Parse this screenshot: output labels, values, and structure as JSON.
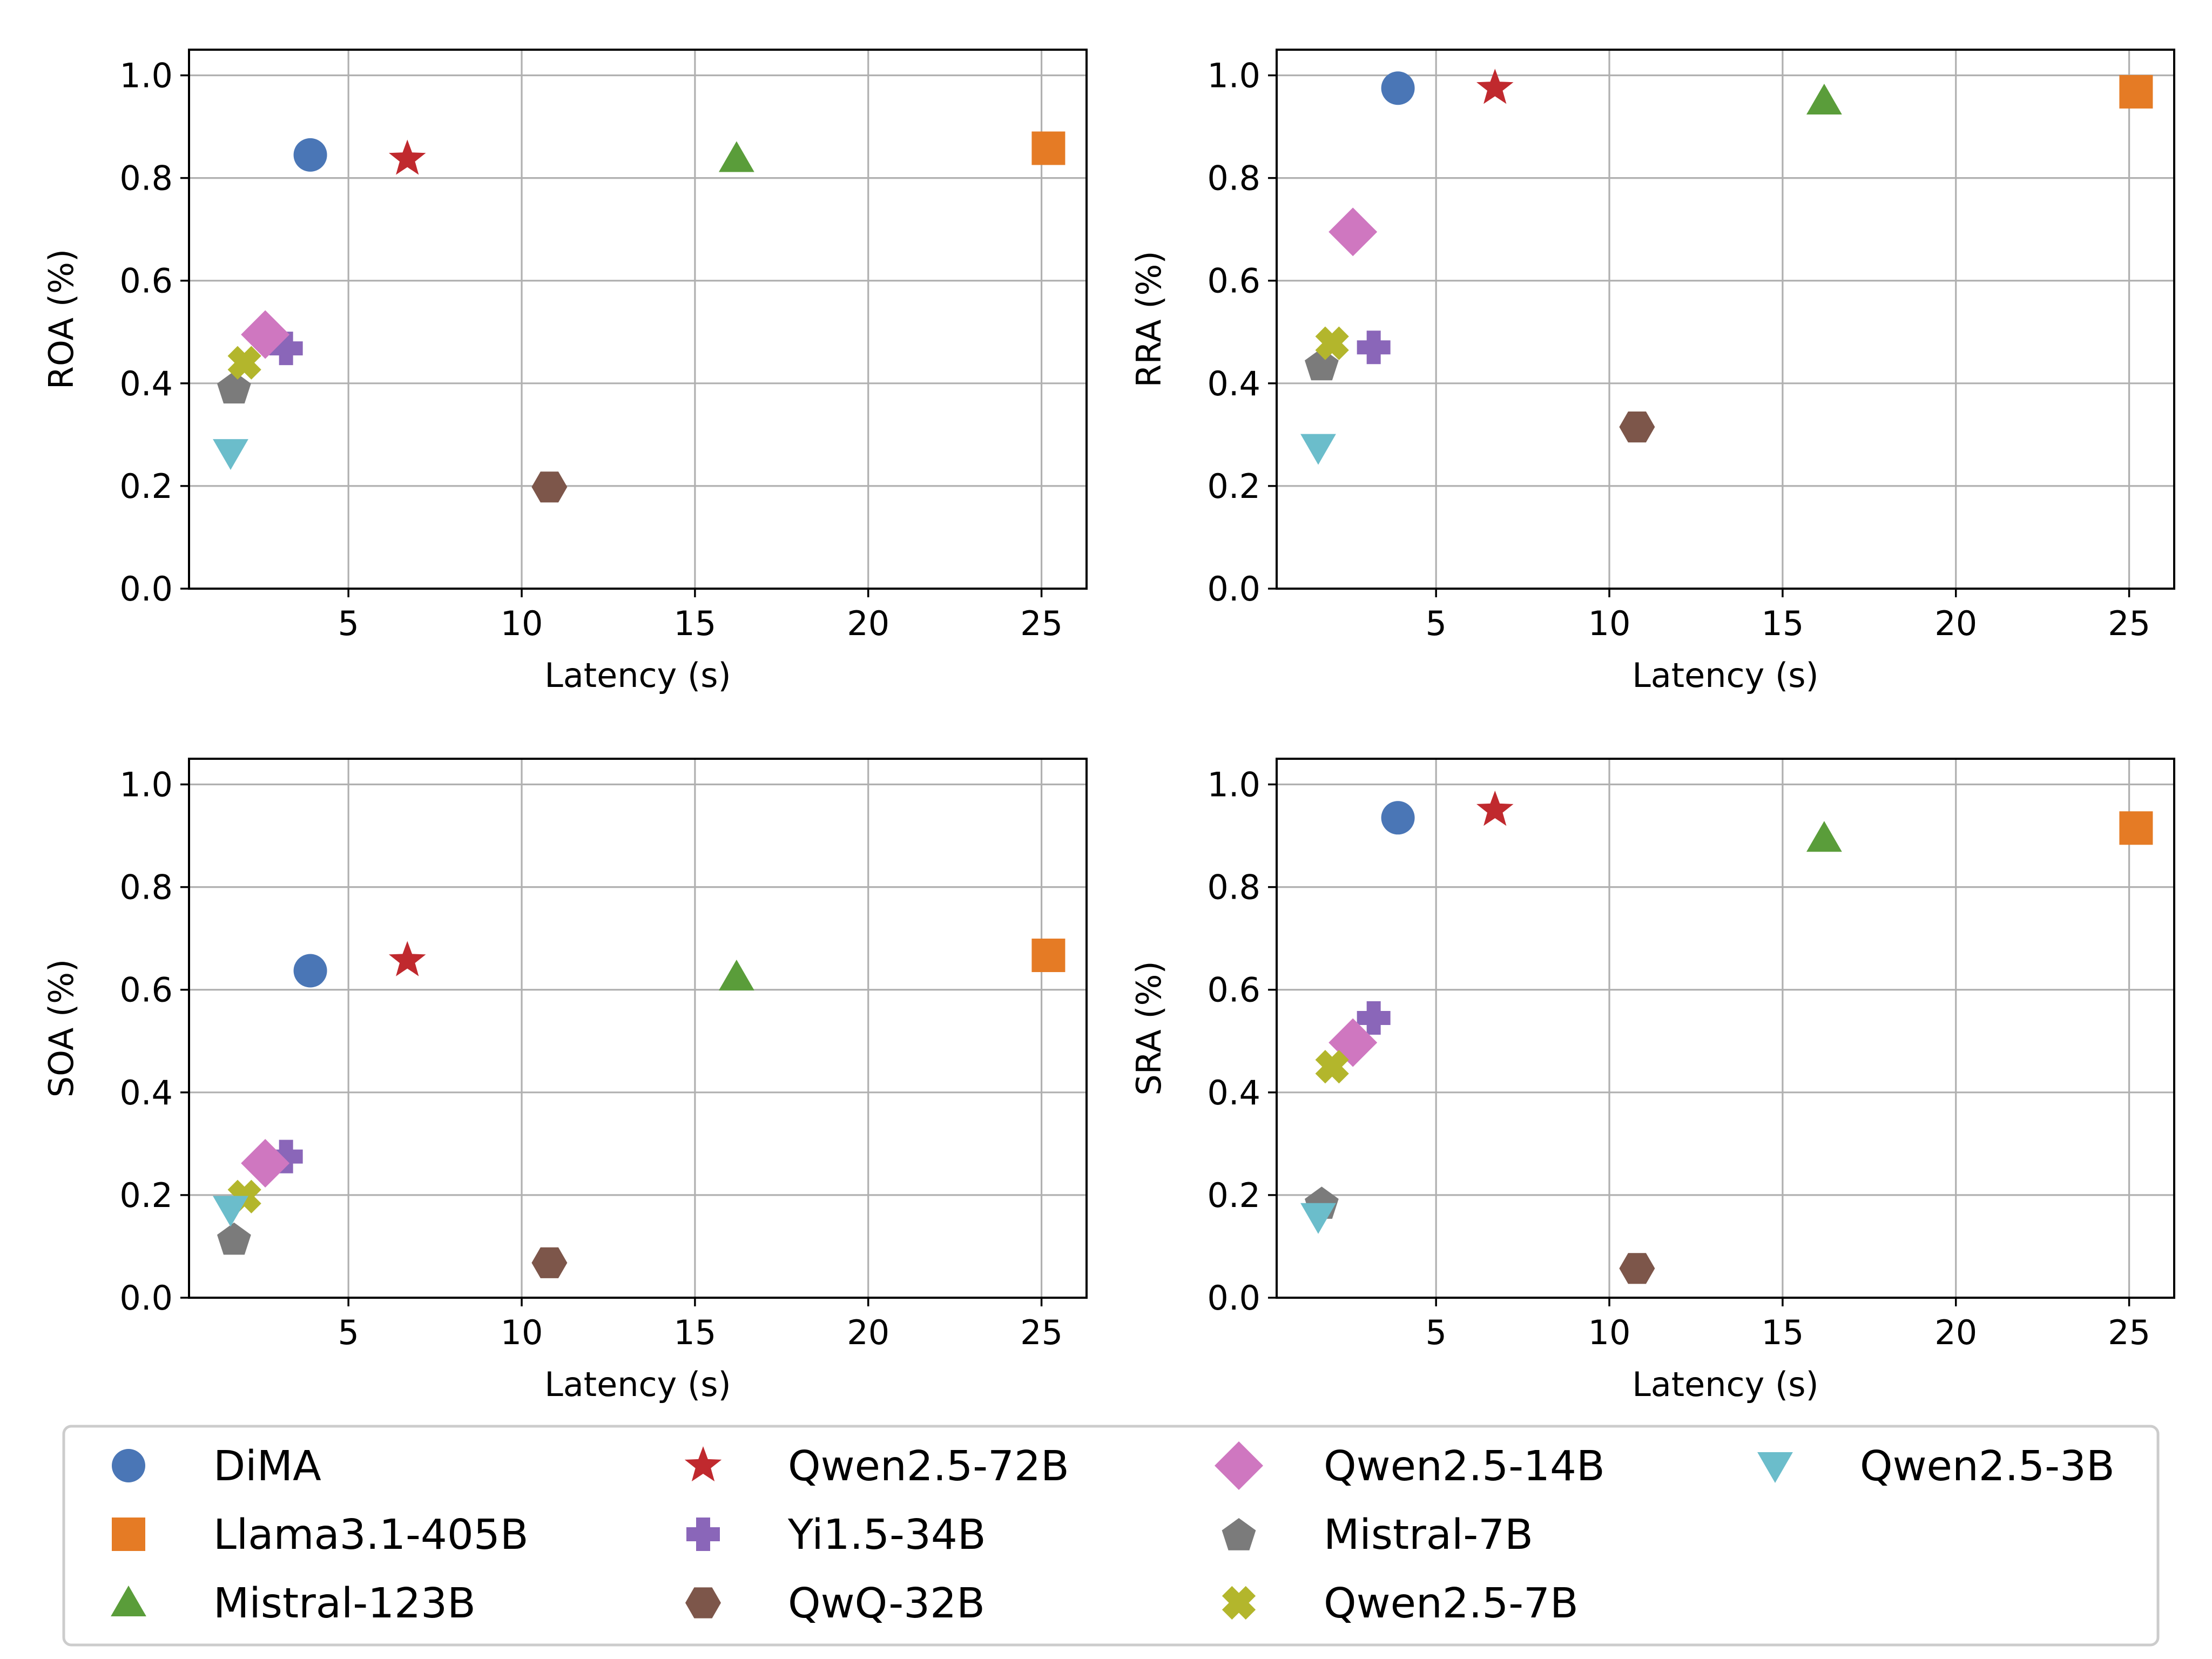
{
  "chart_data": {
    "type": "scatter",
    "x_ticks": [
      5,
      10,
      15,
      20,
      25
    ],
    "y_ticks": [
      "0.0",
      "0.2",
      "0.4",
      "0.6",
      "0.8",
      "1.0"
    ],
    "xlim": [
      0.4,
      26.3
    ],
    "ylim": [
      0.0,
      1.05
    ],
    "grid": true,
    "legend_position": "bottom",
    "series_styles": [
      {
        "name": "DiMA",
        "color": "#4a76b6",
        "marker": "circle"
      },
      {
        "name": "Llama3.1-405B",
        "color": "#e57b25",
        "marker": "square"
      },
      {
        "name": "Mistral-123B",
        "color": "#5a9d3a",
        "marker": "triangle-up"
      },
      {
        "name": "Qwen2.5-72B",
        "color": "#c0292e",
        "marker": "star"
      },
      {
        "name": "Yi1.5-34B",
        "color": "#8a66b9",
        "marker": "plus"
      },
      {
        "name": "QwQ-32B",
        "color": "#7d564a",
        "marker": "hexagon"
      },
      {
        "name": "Qwen2.5-14B",
        "color": "#cf77c0",
        "marker": "diamond"
      },
      {
        "name": "Mistral-7B",
        "color": "#7b7b7b",
        "marker": "pentagon"
      },
      {
        "name": "Qwen2.5-7B",
        "color": "#b3b62c",
        "marker": "x"
      },
      {
        "name": "Qwen2.5-3B",
        "color": "#6bbdcb",
        "marker": "triangle-down"
      }
    ],
    "latency": [
      3.9,
      25.2,
      16.2,
      6.7,
      3.2,
      10.8,
      2.6,
      1.7,
      2.0,
      1.6
    ],
    "panels": [
      {
        "xlabel": "Latency (s)",
        "ylabel": "ROA (%)",
        "values": [
          0.845,
          0.858,
          0.838,
          0.837,
          0.468,
          0.198,
          0.495,
          0.392,
          0.44,
          0.265
        ]
      },
      {
        "xlabel": "Latency (s)",
        "ylabel": "RRA (%)",
        "values": [
          0.975,
          0.968,
          0.95,
          0.975,
          0.47,
          0.315,
          0.695,
          0.437,
          0.478,
          0.275
        ]
      },
      {
        "xlabel": "Latency (s)",
        "ylabel": "SOA (%)",
        "values": [
          0.637,
          0.667,
          0.625,
          0.657,
          0.275,
          0.068,
          0.262,
          0.115,
          0.197,
          0.172
        ]
      },
      {
        "xlabel": "Latency (s)",
        "ylabel": "SRA (%)",
        "values": [
          0.935,
          0.915,
          0.895,
          0.95,
          0.545,
          0.057,
          0.497,
          0.185,
          0.45,
          0.158
        ]
      }
    ]
  }
}
